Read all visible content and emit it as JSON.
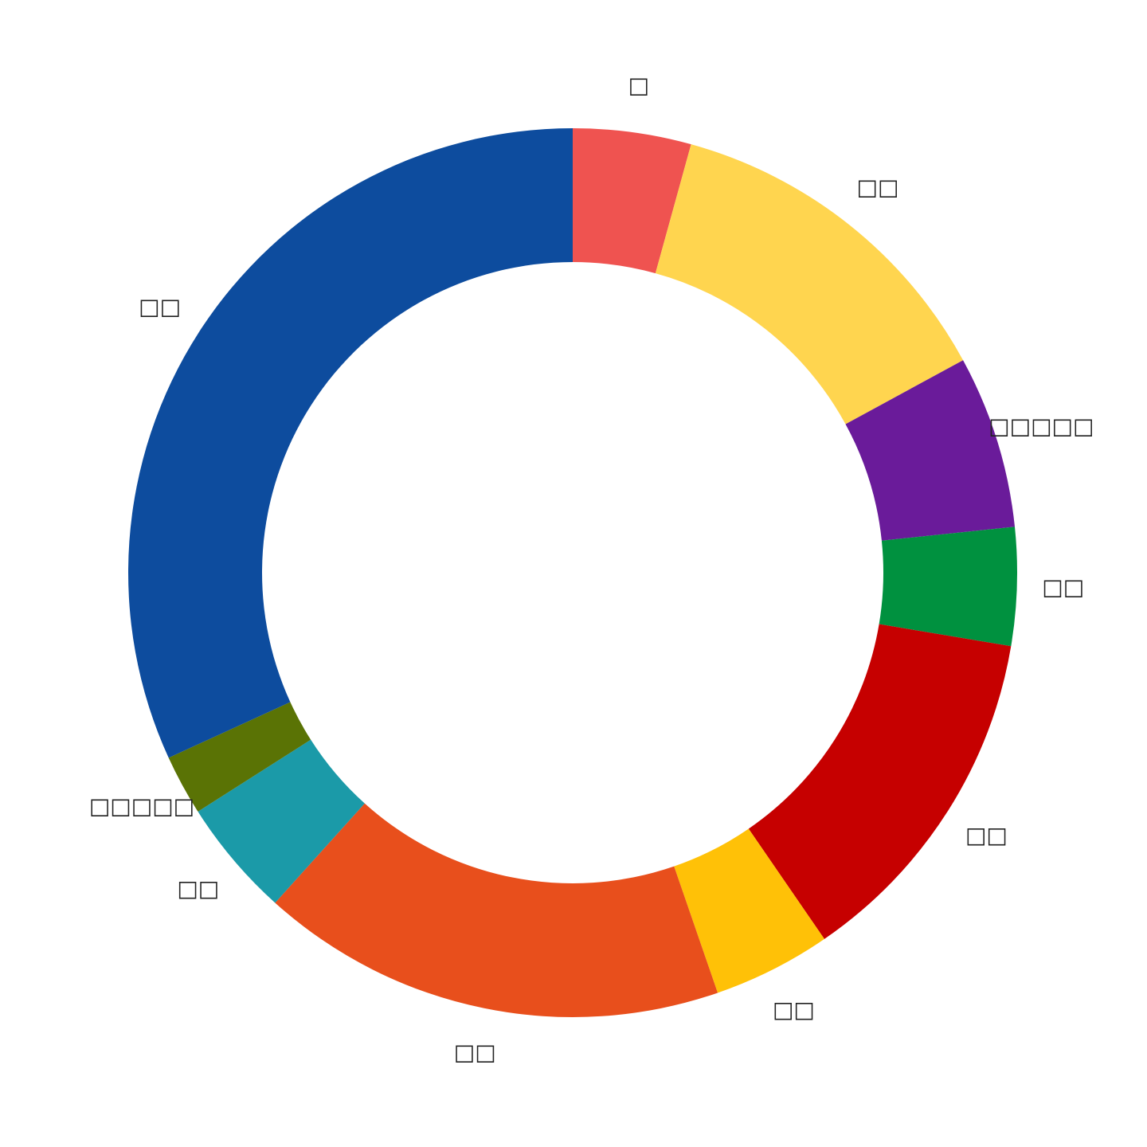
{
  "chart_data": {
    "type": "donut",
    "categories": [
      "□",
      "□□",
      "□□□□□",
      "□□",
      "□□",
      "□□",
      "□□",
      "□□",
      "□□□□□",
      "□□"
    ],
    "values": [
      4.3,
      12.8,
      6.3,
      4.3,
      12.8,
      4.3,
      17,
      4.3,
      2.2,
      31.9
    ],
    "colors": [
      "#ef5350",
      "#ffd54f",
      "#6a1b9a",
      "#00913f",
      "#c60000",
      "#ffc107",
      "#e84f1c",
      "#1b9aa8",
      "#5a7305",
      "#0d4c9e"
    ]
  }
}
